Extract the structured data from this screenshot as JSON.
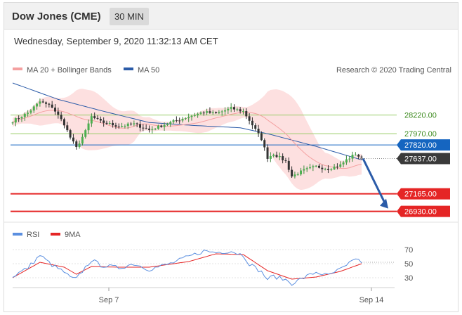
{
  "header": {
    "title": "Dow Jones (CME)",
    "timeframe": "30 MIN"
  },
  "datetime": "Wednesday, September 9, 2020 11:32:13 AM CET",
  "colors": {
    "ma20": "#f4a0a0",
    "ma50": "#2b5ba8",
    "band": "#fde0e0",
    "resistance": "#9acd6a",
    "pivot": "#1565c0",
    "support": "#e52525",
    "rsi": "#5b8fe0",
    "rsi_ma": "#e52525",
    "arrow": "#2b5ba8"
  },
  "legend": {
    "ma20": "MA 20 + Bollinger Bands",
    "ma50": "MA 50",
    "credit": "Research © 2020 Trading Central"
  },
  "levels": [
    {
      "value": "28220.00",
      "kind": "resistance"
    },
    {
      "value": "27970.00",
      "kind": "resistance"
    },
    {
      "value": "27820.00",
      "kind": "pivot"
    },
    {
      "value": "27637.00",
      "kind": "last"
    },
    {
      "value": "27165.00",
      "kind": "support"
    },
    {
      "value": "26930.00",
      "kind": "support"
    }
  ],
  "rsi_legend": {
    "rsi": "RSI",
    "ma": "9MA"
  },
  "rsi_ticks": [
    "70",
    "50",
    "30"
  ],
  "x_labels": [
    "Sep 7",
    "Sep 14"
  ],
  "chart_data": {
    "type": "candlestick",
    "ylim": [
      26860,
      28650
    ],
    "levels": [
      28220,
      27970,
      27820,
      27637,
      27165,
      26930
    ],
    "price_path": [
      [
        0,
        28140
      ],
      [
        5,
        28250
      ],
      [
        9,
        28400
      ],
      [
        13,
        28330
      ],
      [
        17,
        28100
      ],
      [
        19,
        27920
      ],
      [
        21,
        27780
      ],
      [
        24,
        28000
      ],
      [
        26,
        28200
      ],
      [
        29,
        28130
      ],
      [
        35,
        28070
      ],
      [
        40,
        28100
      ],
      [
        45,
        28020
      ],
      [
        52,
        28120
      ],
      [
        58,
        28200
      ],
      [
        63,
        28260
      ],
      [
        67,
        28240
      ],
      [
        72,
        28310
      ],
      [
        76,
        28270
      ],
      [
        78,
        28150
      ],
      [
        82,
        27900
      ],
      [
        84,
        27650
      ],
      [
        86,
        27700
      ],
      [
        90,
        27600
      ],
      [
        92,
        27400
      ],
      [
        96,
        27480
      ],
      [
        100,
        27530
      ],
      [
        104,
        27500
      ],
      [
        108,
        27550
      ],
      [
        110,
        27620
      ],
      [
        113,
        27700
      ],
      [
        115,
        27637
      ]
    ],
    "ma50_path": [
      [
        0,
        28650
      ],
      [
        15,
        28430
      ],
      [
        30,
        28270
      ],
      [
        45,
        28120
      ],
      [
        60,
        28080
      ],
      [
        75,
        28050
      ],
      [
        85,
        27960
      ],
      [
        100,
        27800
      ],
      [
        115,
        27620
      ]
    ],
    "rsi_ylim": [
      20,
      80
    ],
    "rsi_ticks": [
      70,
      50,
      30
    ],
    "rsi_path": [
      [
        0,
        32
      ],
      [
        5,
        44
      ],
      [
        9,
        62
      ],
      [
        13,
        48
      ],
      [
        17,
        38
      ],
      [
        19,
        30
      ],
      [
        21,
        28
      ],
      [
        24,
        45
      ],
      [
        26,
        55
      ],
      [
        29,
        48
      ],
      [
        35,
        44
      ],
      [
        40,
        50
      ],
      [
        45,
        42
      ],
      [
        52,
        50
      ],
      [
        58,
        60
      ],
      [
        63,
        68
      ],
      [
        67,
        66
      ],
      [
        72,
        68
      ],
      [
        76,
        62
      ],
      [
        78,
        50
      ],
      [
        82,
        38
      ],
      [
        84,
        28
      ],
      [
        86,
        32
      ],
      [
        90,
        27
      ],
      [
        92,
        22
      ],
      [
        96,
        30
      ],
      [
        100,
        38
      ],
      [
        104,
        33
      ],
      [
        108,
        42
      ],
      [
        110,
        46
      ],
      [
        113,
        58
      ],
      [
        115,
        52
      ]
    ],
    "rsi_ma_path": [
      [
        0,
        30
      ],
      [
        9,
        52
      ],
      [
        17,
        45
      ],
      [
        21,
        35
      ],
      [
        26,
        46
      ],
      [
        35,
        45
      ],
      [
        45,
        45
      ],
      [
        58,
        53
      ],
      [
        67,
        64
      ],
      [
        76,
        63
      ],
      [
        84,
        40
      ],
      [
        92,
        28
      ],
      [
        100,
        31
      ],
      [
        108,
        39
      ],
      [
        115,
        50
      ]
    ]
  }
}
